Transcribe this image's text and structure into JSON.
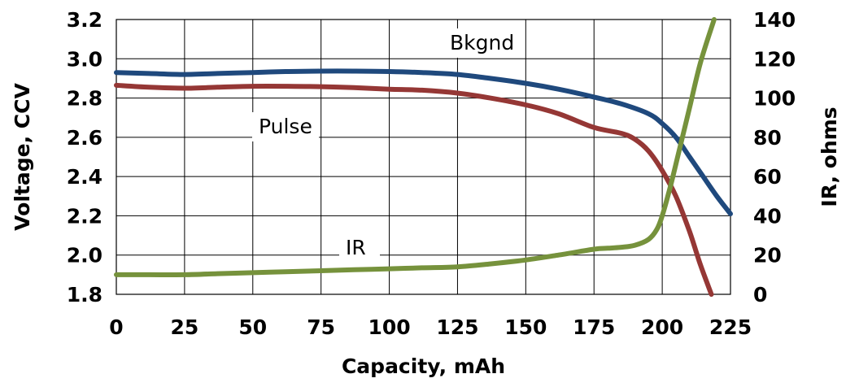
{
  "chart_data": {
    "type": "line",
    "title": "",
    "xlabel": "Capacity, mAh",
    "ylabel": "Voltage, CCV",
    "y2label": "IR, ohms",
    "xlim": [
      0,
      225
    ],
    "ylim": [
      1.8,
      3.2
    ],
    "y2lim": [
      0,
      140
    ],
    "x_ticks": [
      "0",
      "25",
      "50",
      "75",
      "100",
      "125",
      "150",
      "175",
      "200",
      "225"
    ],
    "y_ticks": [
      "1.8",
      "2.0",
      "2.2",
      "2.4",
      "2.6",
      "2.8",
      "3.0",
      "3.2"
    ],
    "y2_ticks": [
      "0",
      "20",
      "40",
      "60",
      "80",
      "100",
      "120",
      "140"
    ],
    "grid": true,
    "legend": "none",
    "series": [
      {
        "name": "Bkgnd",
        "axis": "left",
        "color": "#1f497d",
        "x": [
          0,
          12,
          25,
          37,
          50,
          62,
          75,
          87,
          100,
          112,
          125,
          137,
          150,
          162,
          175,
          185,
          195,
          200,
          205,
          210,
          215,
          220,
          225
        ],
        "y": [
          2.93,
          2.925,
          2.92,
          2.925,
          2.93,
          2.935,
          2.937,
          2.937,
          2.935,
          2.93,
          2.92,
          2.9,
          2.875,
          2.845,
          2.805,
          2.77,
          2.72,
          2.67,
          2.6,
          2.5,
          2.4,
          2.3,
          2.21
        ]
      },
      {
        "name": "Pulse",
        "axis": "left",
        "color": "#953735",
        "x": [
          0,
          12,
          25,
          37,
          50,
          62,
          75,
          87,
          100,
          112,
          125,
          137,
          150,
          162,
          175,
          185,
          190,
          195,
          200,
          205,
          210,
          214,
          218
        ],
        "y": [
          2.865,
          2.855,
          2.85,
          2.855,
          2.86,
          2.86,
          2.858,
          2.853,
          2.845,
          2.84,
          2.825,
          2.8,
          2.765,
          2.72,
          2.65,
          2.62,
          2.59,
          2.53,
          2.43,
          2.3,
          2.12,
          1.95,
          1.8
        ]
      },
      {
        "name": "IR",
        "axis": "right",
        "color": "#76923c",
        "x": [
          0,
          12,
          25,
          37,
          50,
          62,
          75,
          87,
          100,
          112,
          125,
          137,
          150,
          162,
          175,
          180,
          185,
          190,
          195,
          198,
          200,
          203,
          206,
          210,
          214,
          219
        ],
        "y": [
          10,
          10,
          10,
          10.5,
          11,
          11.5,
          12,
          12.5,
          13,
          13.5,
          14,
          15.5,
          17.5,
          20,
          23,
          23.5,
          24,
          25,
          28,
          33,
          40,
          55,
          72,
          95,
          118,
          140
        ]
      }
    ],
    "annotations": [
      "Bkgnd",
      "Pulse",
      "IR"
    ]
  }
}
